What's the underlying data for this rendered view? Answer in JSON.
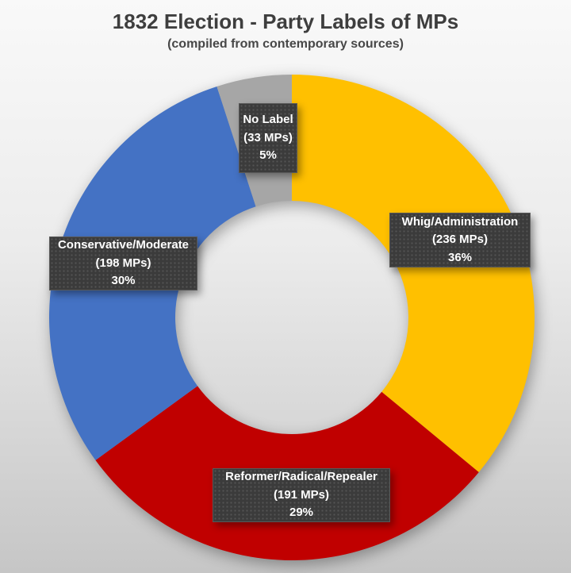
{
  "chart_data": {
    "type": "pie",
    "donut": true,
    "title": "1832 Election - Party Labels of MPs",
    "subtitle": "(compiled from contemporary sources)",
    "start_angle_deg": 0,
    "direction": "clockwise",
    "legend_position": "none",
    "label_style": "dark textured boxes with white bold text placed over slices",
    "background": {
      "top": "#f9f9f9",
      "bottom": "#c6c6c6"
    },
    "segments": [
      {
        "id": "whig",
        "label": "Whig/Administration",
        "mps": 236,
        "percent": 36,
        "mps_text": "(236 MPs)",
        "pct_text": "36%",
        "color": "#FFC000"
      },
      {
        "id": "reformer",
        "label": "Reformer/Radical/Repealer",
        "mps": 191,
        "percent": 29,
        "mps_text": "(191 MPs)",
        "pct_text": "29%",
        "color": "#C00000"
      },
      {
        "id": "conservative",
        "label": "Conservative/Moderate",
        "mps": 198,
        "percent": 30,
        "mps_text": "(198 MPs)",
        "pct_text": "30%",
        "color": "#4472C4"
      },
      {
        "id": "nolabel",
        "label": "No Label",
        "mps": 33,
        "percent": 5,
        "mps_text": "(33 MPs)",
        "pct_text": "5%",
        "color": "#A6A6A6"
      }
    ]
  }
}
